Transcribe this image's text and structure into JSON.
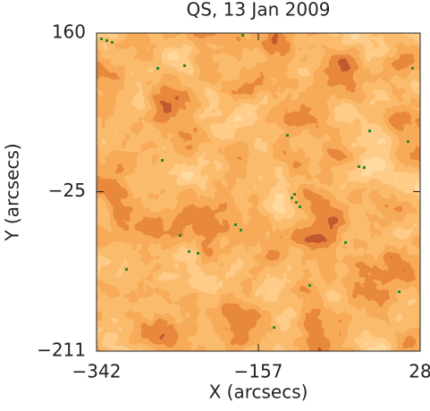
{
  "chart_data": {
    "type": "image",
    "title": "QS, 13 Jan 2009",
    "x_label": "X (arcsecs)",
    "y_label": "Y (arcsecs)",
    "xlim": [
      -342,
      28
    ],
    "ylim": [
      -211,
      160
    ],
    "xticks": [
      {
        "value": -342,
        "label": "−342"
      },
      {
        "value": -157,
        "label": "−157"
      },
      28
    ],
    "yticks": [
      {
        "value": 160,
        "label": "160"
      },
      {
        "value": -25,
        "label": "−25"
      },
      {
        "value": -211,
        "label": "−211"
      }
    ]
  }
}
